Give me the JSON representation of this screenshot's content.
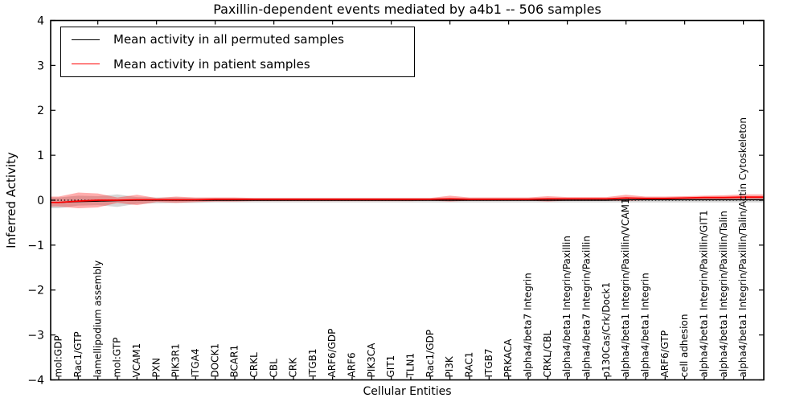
{
  "figure": {
    "background": "#ffffff"
  },
  "chart_data": {
    "type": "line",
    "title": "Paxillin-dependent events mediated by a4b1 -- 506 samples",
    "xlabel": "Cellular Entities",
    "ylabel": "Inferred Activity",
    "ylim": [
      -4,
      4
    ],
    "ytick_labels": [
      "−4",
      "−3",
      "−2",
      "−1",
      "0",
      "1",
      "2",
      "3",
      "4"
    ],
    "grid": false,
    "legend": {
      "position": "upper left",
      "entries": [
        {
          "label": "Mean activity in all permuted samples",
          "color": "#000000"
        },
        {
          "label": "Mean activity in patient samples",
          "color": "#ff0000"
        }
      ]
    },
    "categories": [
      "mol:GDP",
      "Rac1/GTP",
      "lamellipodium assembly",
      "mol:GTP",
      "VCAM1",
      "PXN",
      "PIK3R1",
      "ITGA4",
      "DOCK1",
      "BCAR1",
      "CRKL",
      "CBL",
      "CRK",
      "ITGB1",
      "ARF6/GDP",
      "ARF6",
      "PIK3CA",
      "GIT1",
      "TLN1",
      "Rac1/GDP",
      "PI3K",
      "RAC1",
      "ITGB7",
      "PRKACA",
      "alpha4/beta7 Integrin",
      "CRKL/CBL",
      "alpha4/beta1 Integrin/Paxillin",
      "alpha4/beta7 Integrin/Paxillin",
      "p130Cas/Crk/Dock1",
      "alpha4/beta1 Integrin/Paxillin/VCAM1",
      "alpha4/beta1 Integrin",
      "ARF6/GTP",
      "cell adhesion",
      "alpha4/beta1 Integrin/Paxillin/GIT1",
      "alpha4/beta1 Integrin/Paxillin/Talin",
      "alpha4/beta1 Integrin/Paxillin/Talin/Actin Cytoskeleton"
    ],
    "series": [
      {
        "name": "Mean activity in all permuted samples",
        "type": "line",
        "color": "#000000",
        "values": [
          -0.05,
          -0.03,
          -0.02,
          -0.01,
          0,
          0,
          0,
          0,
          0,
          0,
          0,
          0,
          0,
          0,
          0,
          0,
          0,
          0,
          0,
          0,
          0,
          0,
          0,
          0,
          0,
          0,
          0,
          0,
          0,
          0.01,
          0.01,
          0.01,
          0.01,
          0.01,
          0.01,
          0.01
        ]
      },
      {
        "name": "Mean activity in patient samples",
        "type": "line",
        "color": "#ff0000",
        "values": [
          -0.05,
          -0.02,
          0,
          0,
          0.01,
          0.01,
          0.01,
          0.01,
          0.02,
          0.02,
          0.02,
          0.02,
          0.02,
          0.02,
          0.02,
          0.02,
          0.02,
          0.02,
          0.02,
          0.02,
          0.03,
          0.02,
          0.02,
          0.02,
          0.02,
          0.03,
          0.03,
          0.03,
          0.03,
          0.05,
          0.04,
          0.04,
          0.05,
          0.06,
          0.06,
          0.07
        ]
      },
      {
        "name": "Permuted samples std band",
        "type": "band",
        "fill": "rgba(0,0,0,0.16)",
        "upper": [
          0.06,
          0.1,
          0.09,
          0.13,
          0.07,
          0.06,
          0.06,
          0.05,
          0.05,
          0.05,
          0.05,
          0.05,
          0.05,
          0.05,
          0.05,
          0.05,
          0.05,
          0.05,
          0.05,
          0.05,
          0.05,
          0.05,
          0.05,
          0.05,
          0.05,
          0.05,
          0.05,
          0.05,
          0.05,
          0.06,
          0.06,
          0.06,
          0.06,
          0.06,
          0.06,
          0.07
        ],
        "lower": [
          -0.18,
          -0.12,
          -0.11,
          -0.15,
          -0.08,
          -0.07,
          -0.06,
          -0.06,
          -0.05,
          -0.05,
          -0.05,
          -0.05,
          -0.05,
          -0.05,
          -0.05,
          -0.05,
          -0.05,
          -0.05,
          -0.05,
          -0.05,
          -0.05,
          -0.05,
          -0.05,
          -0.05,
          -0.05,
          -0.05,
          -0.05,
          -0.05,
          -0.05,
          -0.05,
          -0.05,
          -0.05,
          -0.05,
          -0.05,
          -0.05,
          -0.05
        ]
      },
      {
        "name": "Patient samples std band",
        "type": "band",
        "fill": "rgba(255,0,0,0.32)",
        "upper": [
          0.08,
          0.17,
          0.15,
          0.06,
          0.12,
          0.05,
          0.08,
          0.06,
          0.06,
          0.06,
          0.05,
          0.05,
          0.05,
          0.05,
          0.05,
          0.05,
          0.05,
          0.05,
          0.05,
          0.05,
          0.1,
          0.06,
          0.06,
          0.06,
          0.06,
          0.09,
          0.07,
          0.07,
          0.07,
          0.12,
          0.08,
          0.08,
          0.09,
          0.1,
          0.11,
          0.13
        ],
        "lower": [
          -0.14,
          -0.18,
          -0.16,
          -0.06,
          -0.11,
          -0.04,
          -0.06,
          -0.04,
          -0.03,
          -0.03,
          -0.02,
          -0.02,
          -0.02,
          -0.02,
          -0.02,
          -0.02,
          -0.02,
          -0.02,
          -0.02,
          -0.01,
          -0.03,
          -0.01,
          -0.01,
          -0.01,
          -0.01,
          -0.03,
          -0.01,
          -0.01,
          -0.01,
          -0.02,
          0,
          0,
          0,
          0.01,
          0.01,
          0.02
        ]
      }
    ],
    "zero_line": {
      "value": 0,
      "style": "dotted",
      "color": "#000000"
    }
  }
}
